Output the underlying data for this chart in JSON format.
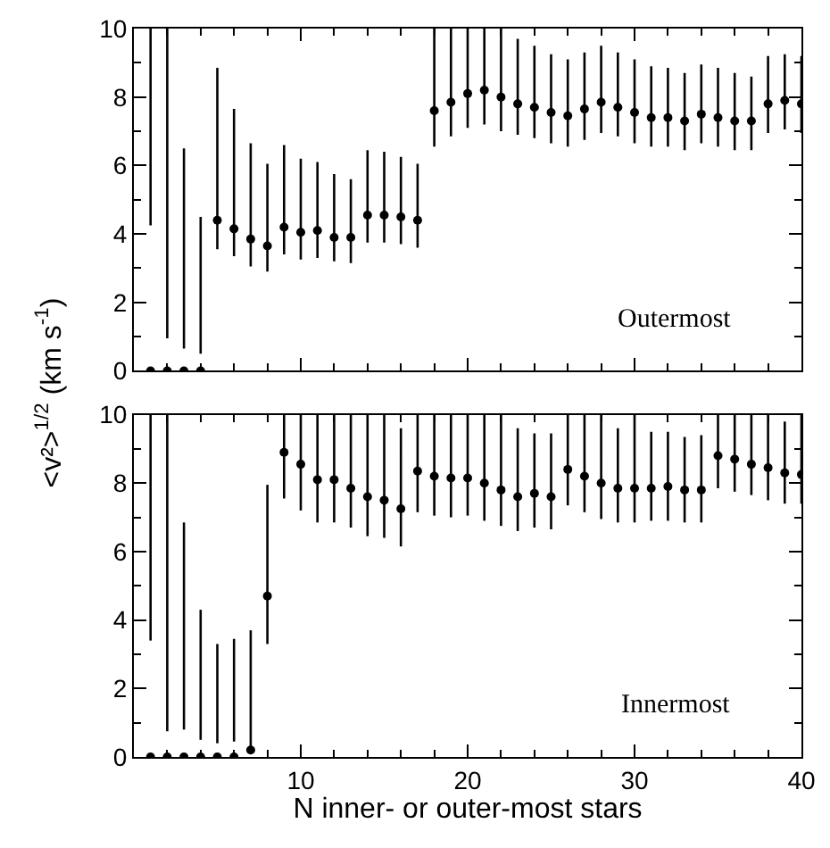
{
  "chart_data": [
    {
      "type": "scatter",
      "ylabel": "<v²>$^{1/2}$ (km s$^{-1}$)",
      "annotations": [
        "Outermost"
      ],
      "x": [
        1,
        2,
        3,
        4,
        5,
        6,
        7,
        8,
        9,
        10,
        11,
        12,
        13,
        14,
        15,
        16,
        17,
        18,
        19,
        20,
        21,
        22,
        23,
        24,
        25,
        26,
        27,
        28,
        29,
        30,
        31,
        32,
        33,
        34,
        35,
        36,
        37,
        38,
        39,
        40
      ],
      "series": [
        {
          "color": "#000000",
          "values": [
            0,
            0,
            0,
            0,
            4.4,
            4.15,
            3.85,
            3.65,
            4.2,
            4.05,
            4.1,
            3.9,
            3.9,
            4.55,
            4.55,
            4.5,
            4.4,
            7.6,
            7.85,
            8.1,
            8.2,
            8.0,
            7.8,
            7.7,
            7.55,
            7.45,
            7.65,
            7.85,
            7.7,
            7.55,
            7.4,
            7.4,
            7.3,
            7.5,
            7.4,
            7.3,
            7.3,
            7.8,
            7.9,
            7.8
          ],
          "errors": [
            [
              4.25,
              10
            ],
            [
              0.95,
              10
            ],
            [
              0.65,
              6.5
            ],
            [
              0.5,
              4.5
            ],
            [
              3.55,
              8.85
            ],
            [
              3.35,
              7.65
            ],
            [
              3.05,
              6.65
            ],
            [
              2.9,
              6.05
            ],
            [
              3.4,
              6.6
            ],
            [
              3.25,
              6.2
            ],
            [
              3.3,
              6.1
            ],
            [
              3.2,
              5.75
            ],
            [
              3.15,
              5.6
            ],
            [
              3.75,
              6.45
            ],
            [
              3.75,
              6.4
            ],
            [
              3.7,
              6.25
            ],
            [
              3.6,
              6.05
            ],
            [
              6.55,
              10
            ],
            [
              6.85,
              10
            ],
            [
              7.1,
              10
            ],
            [
              7.2,
              10
            ],
            [
              7.0,
              10
            ],
            [
              6.9,
              9.7
            ],
            [
              6.8,
              9.5
            ],
            [
              6.65,
              9.25
            ],
            [
              6.55,
              9.1
            ],
            [
              6.75,
              9.3
            ],
            [
              6.95,
              9.5
            ],
            [
              6.85,
              9.3
            ],
            [
              6.65,
              9.1
            ],
            [
              6.55,
              8.9
            ],
            [
              6.55,
              8.85
            ],
            [
              6.45,
              8.7
            ],
            [
              6.65,
              8.95
            ],
            [
              6.55,
              8.85
            ],
            [
              6.45,
              8.7
            ],
            [
              6.45,
              8.6
            ],
            [
              6.95,
              9.2
            ],
            [
              7.05,
              9.25
            ],
            [
              6.95,
              9.2
            ]
          ]
        }
      ],
      "xlim": [
        0,
        40
      ],
      "xticks": [
        10,
        20,
        30,
        40
      ],
      "ylim": [
        0,
        10
      ],
      "yticks": [
        0,
        2,
        4,
        6,
        8,
        10
      ],
      "tick_labels": "y",
      "marker": "circle"
    },
    {
      "type": "scatter",
      "xlabel": "N inner- or outer-most stars",
      "annotations": [
        "Innermost"
      ],
      "x": [
        1,
        2,
        3,
        4,
        5,
        6,
        7,
        8,
        9,
        10,
        11,
        12,
        13,
        14,
        15,
        16,
        17,
        18,
        19,
        20,
        21,
        22,
        23,
        24,
        25,
        26,
        27,
        28,
        29,
        30,
        31,
        32,
        33,
        34,
        35,
        36,
        37,
        38,
        39,
        40
      ],
      "series": [
        {
          "color": "#000000",
          "values": [
            0,
            0,
            0,
            0,
            0,
            0,
            0.2,
            4.7,
            8.9,
            8.55,
            8.1,
            8.1,
            7.85,
            7.6,
            7.5,
            7.25,
            8.35,
            8.2,
            8.15,
            8.15,
            8.0,
            7.8,
            7.6,
            7.7,
            7.6,
            8.4,
            8.2,
            8.0,
            7.85,
            7.85,
            7.85,
            7.9,
            7.8,
            7.8,
            8.8,
            8.7,
            8.55,
            8.45,
            8.3,
            8.25
          ],
          "errors": [
            [
              3.4,
              10
            ],
            [
              0.75,
              10
            ],
            [
              0.8,
              6.85
            ],
            [
              0.5,
              4.3
            ],
            [
              0.4,
              3.3
            ],
            [
              0.45,
              3.45
            ],
            [
              0.3,
              3.7
            ],
            [
              3.3,
              7.95
            ],
            [
              7.55,
              10
            ],
            [
              7.2,
              10
            ],
            [
              6.85,
              10
            ],
            [
              6.85,
              10
            ],
            [
              6.7,
              10
            ],
            [
              6.45,
              10
            ],
            [
              6.4,
              10
            ],
            [
              6.15,
              9.6
            ],
            [
              7.15,
              10
            ],
            [
              7.05,
              10
            ],
            [
              7.0,
              10
            ],
            [
              7.05,
              10
            ],
            [
              6.9,
              10
            ],
            [
              6.75,
              10
            ],
            [
              6.6,
              9.6
            ],
            [
              6.7,
              9.45
            ],
            [
              6.65,
              9.45
            ],
            [
              7.35,
              10
            ],
            [
              7.15,
              10
            ],
            [
              6.95,
              10
            ],
            [
              6.85,
              9.6
            ],
            [
              6.85,
              10
            ],
            [
              6.9,
              9.5
            ],
            [
              6.9,
              9.5
            ],
            [
              6.85,
              9.35
            ],
            [
              6.85,
              9.4
            ],
            [
              7.85,
              10
            ],
            [
              7.75,
              10
            ],
            [
              7.65,
              10
            ],
            [
              7.5,
              10
            ],
            [
              7.4,
              9.8
            ],
            [
              7.4,
              10
            ]
          ]
        }
      ],
      "xlim": [
        0,
        40
      ],
      "xticks": [
        10,
        20,
        30,
        40
      ],
      "ylim": [
        0,
        10
      ],
      "yticks": [
        0,
        2,
        4,
        6,
        8,
        10
      ],
      "marker": "circle"
    }
  ]
}
